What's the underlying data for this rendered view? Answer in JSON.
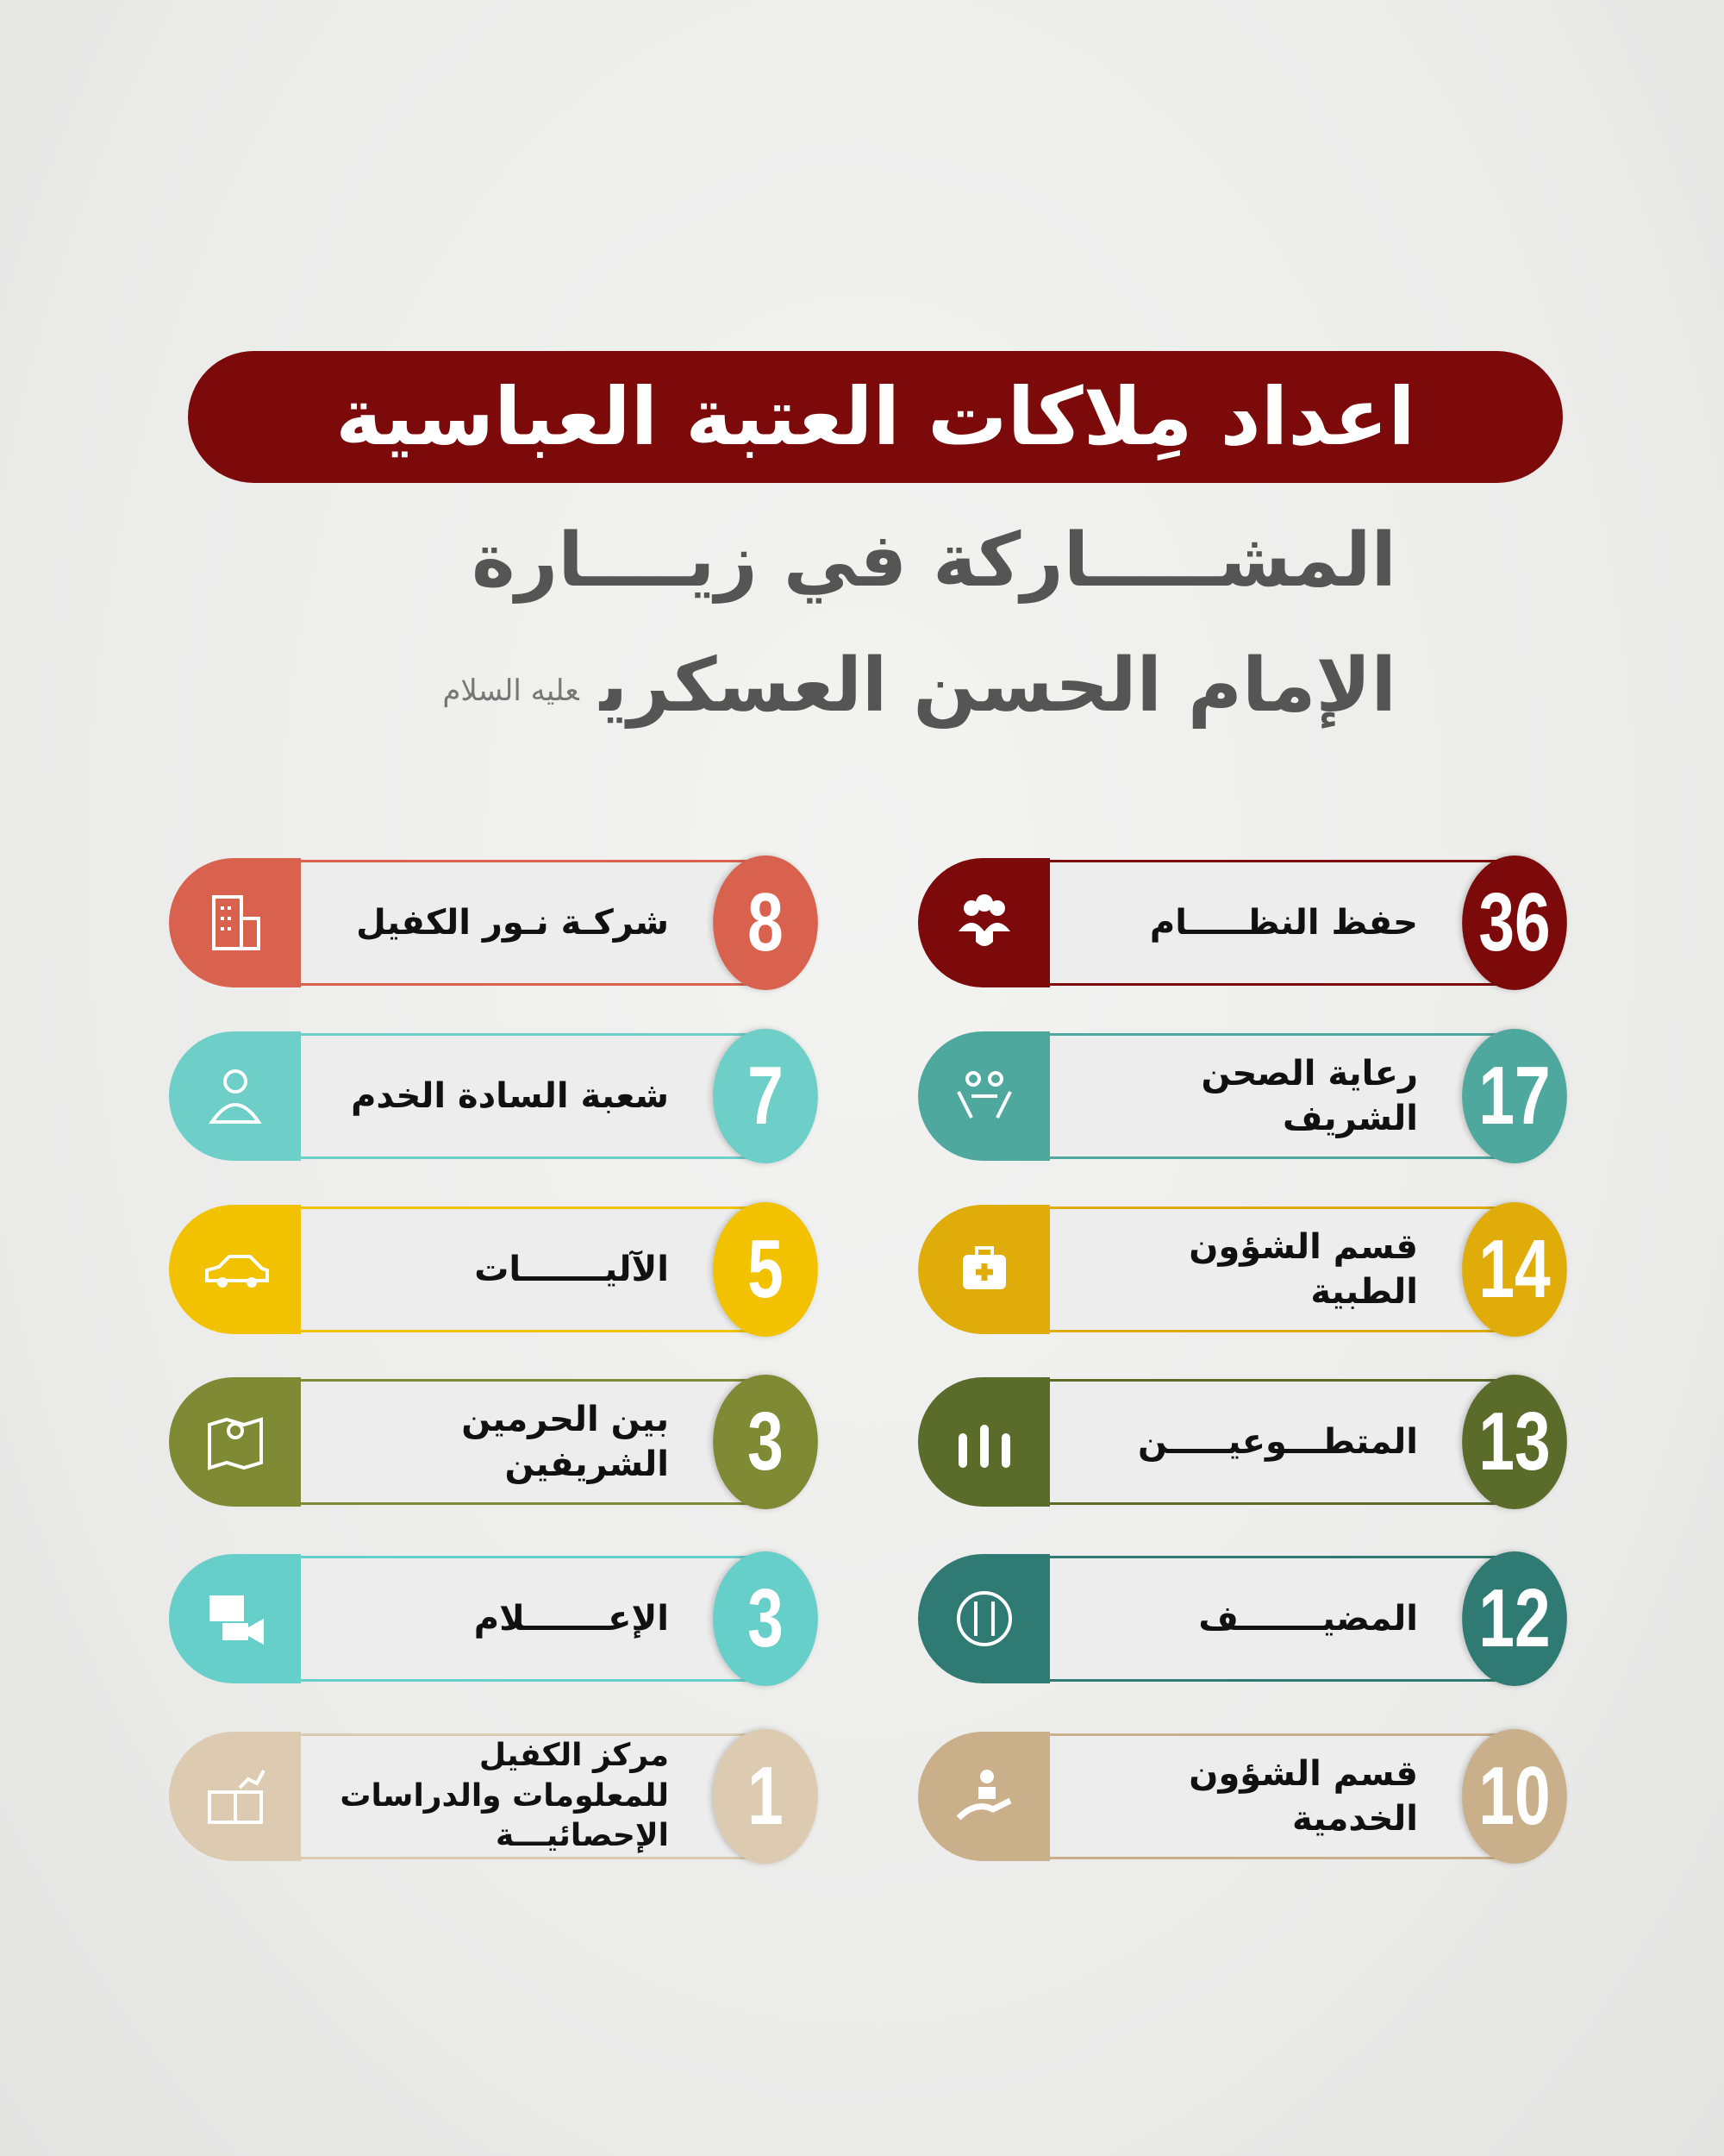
{
  "header": {
    "title": "اعداد مِلاكات العتبة العباسية",
    "subtitle_line1": "المشـــــاركة في زيــــارة",
    "subtitle_line2": "الإمام الحسن العسكري",
    "honorific": "عليه السلام"
  },
  "right_column": [
    {
      "number": "36",
      "label": "حفظ النظـــــام",
      "icon": "people-shield-icon",
      "color": "#7d0a0a"
    },
    {
      "number": "17",
      "label": "رعاية الصحن الشريف",
      "icon": "caring-hands-icon",
      "color": "#4fa89e"
    },
    {
      "number": "14",
      "label": "قسم الشؤون الطبية",
      "icon": "first-aid-kit-icon",
      "color": "#e0ac0a"
    },
    {
      "number": "13",
      "label": "المتطـــوعيـــــن",
      "icon": "raised-hands-icon",
      "color": "#5a6b2a"
    },
    {
      "number": "12",
      "label": "المضيـــــــف",
      "icon": "dining-plate-icon",
      "color": "#2f7a72"
    },
    {
      "number": "10",
      "label": "قسم الشؤون الخدمية",
      "icon": "service-hand-icon",
      "color": "#c9b08a"
    }
  ],
  "left_column": [
    {
      "number": "8",
      "label": "شركـة نـور الكفيل",
      "icon": "building-icon",
      "color": "#d9624f"
    },
    {
      "number": "7",
      "label": "شعبة السادة الخدم",
      "icon": "cleric-person-icon",
      "color": "#6dcfc8"
    },
    {
      "number": "5",
      "label": "الآليـــــــات",
      "icon": "car-icon",
      "color": "#f2c200"
    },
    {
      "number": "3",
      "label": "بين الحرمين الشريفين",
      "icon": "map-pin-icon",
      "color": "#7f8a35"
    },
    {
      "number": "3",
      "label": "الإعـــــــلام",
      "icon": "video-camera-icon",
      "color": "#66cfc9"
    },
    {
      "number": "1",
      "label": "مركز الكفيل للمعلومات والدراسات الإحصائيـــة",
      "icon": "book-chart-icon",
      "color": "#dccbb0"
    }
  ]
}
